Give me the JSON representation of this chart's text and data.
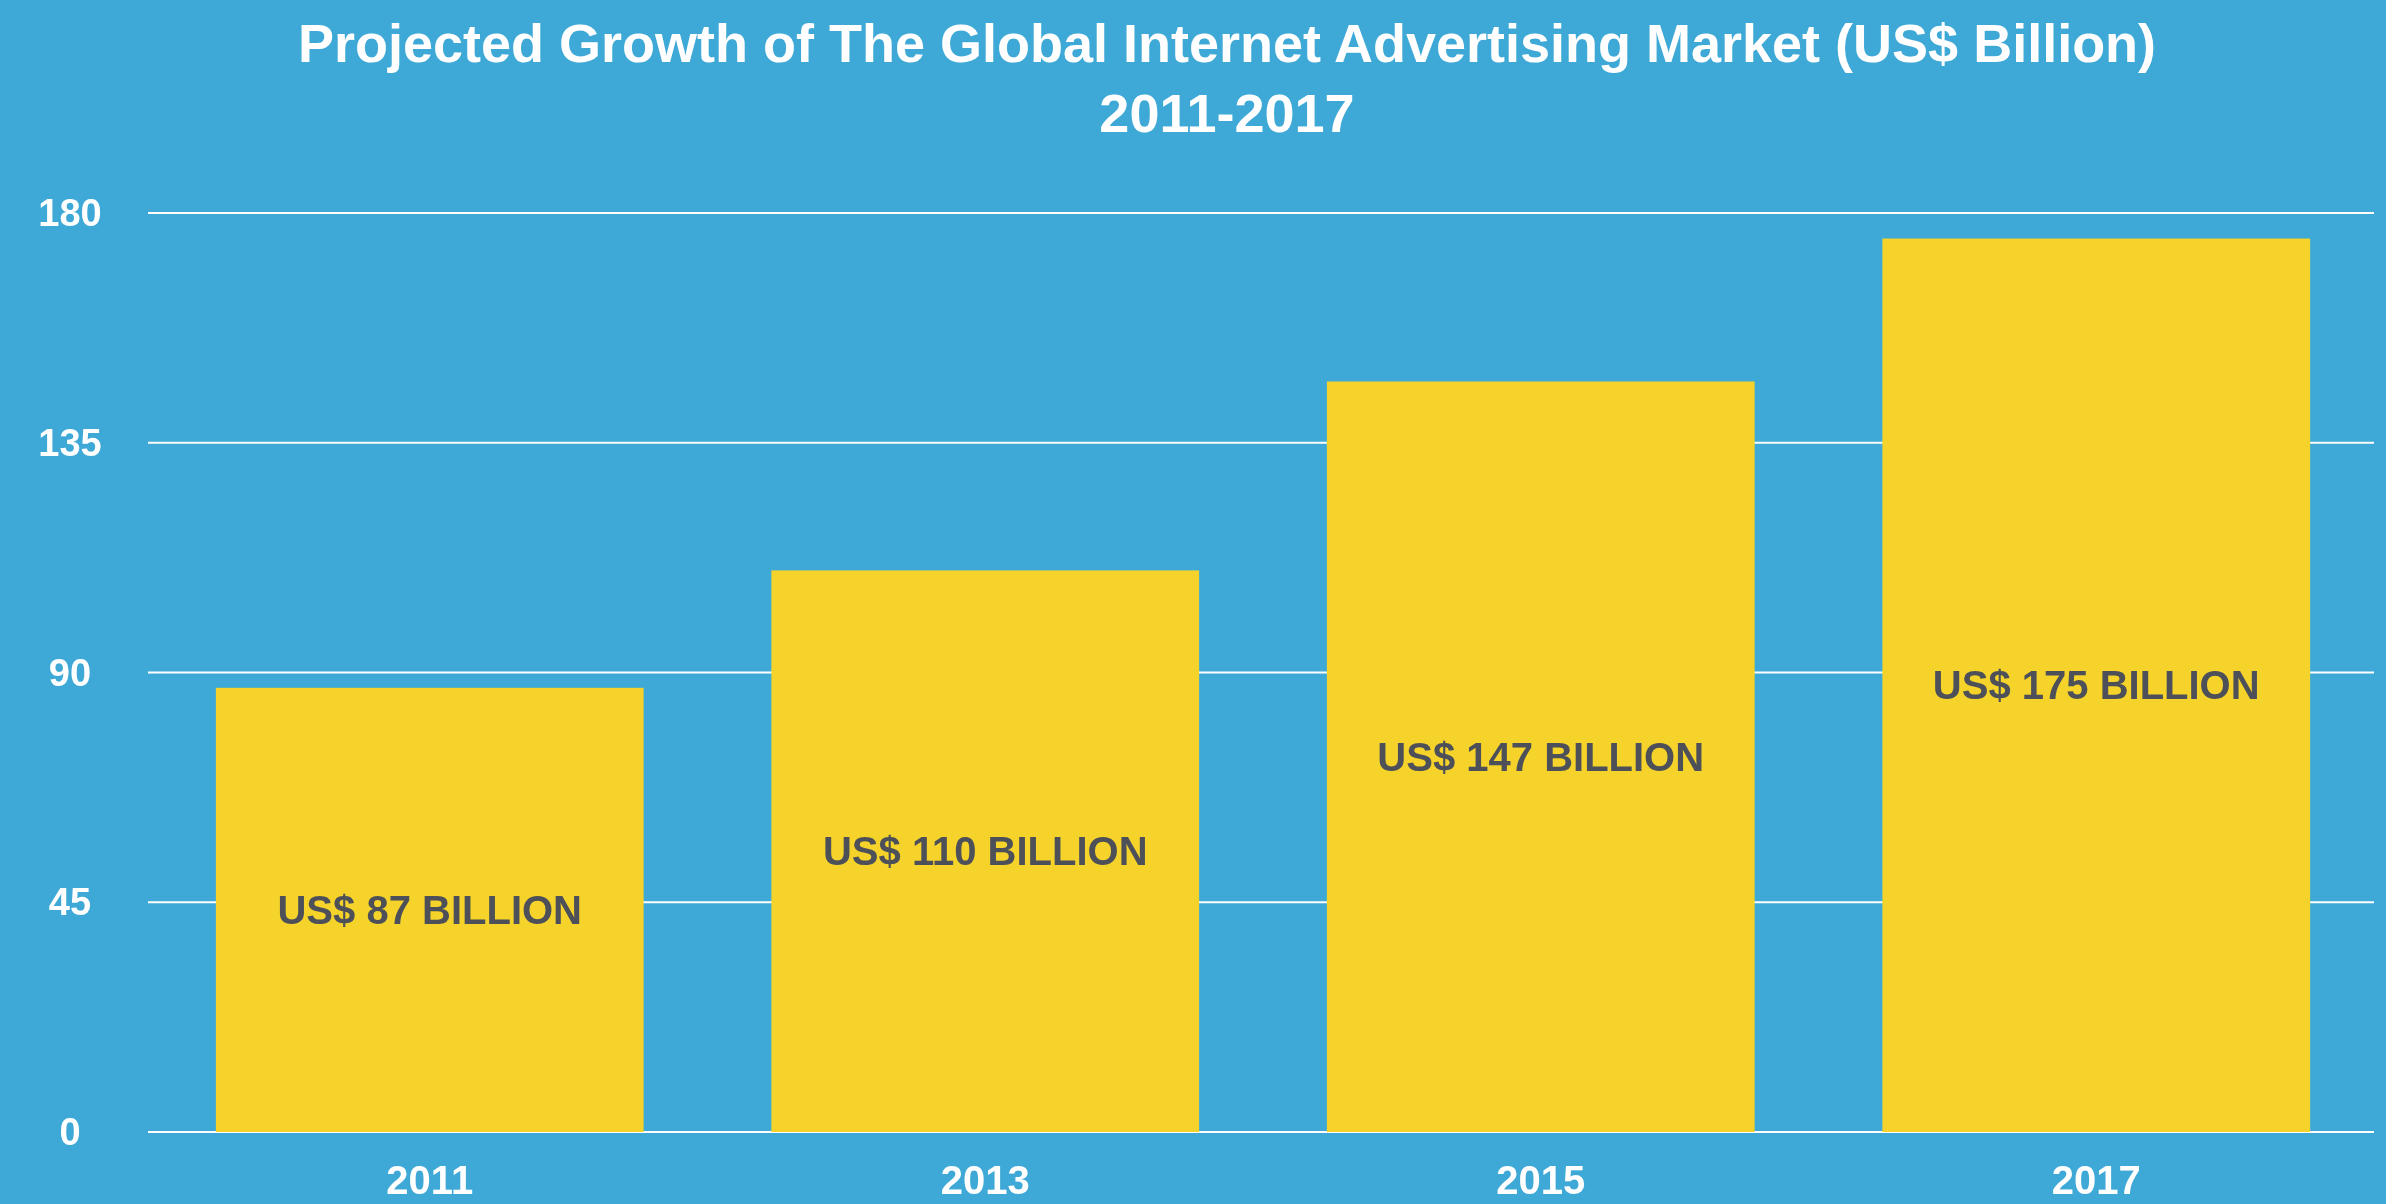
{
  "chart_data": {
    "type": "bar",
    "title": "Projected Growth of The Global Internet Advertising Market (US$ Billion)",
    "subtitle": "2011-2017",
    "categories": [
      "2011",
      "2013",
      "2015",
      "2017"
    ],
    "values": [
      87,
      110,
      147,
      175
    ],
    "color": "#f5d32a",
    "value_labels": [
      "US$ 87 BILLION",
      "US$ 110 BILLION",
      "US$ 147 BILLION",
      "US$ 175 BILLION"
    ],
    "ylim": [
      0,
      180
    ],
    "yticks": [
      0,
      45,
      90,
      135,
      180
    ],
    "grid": "y"
  }
}
